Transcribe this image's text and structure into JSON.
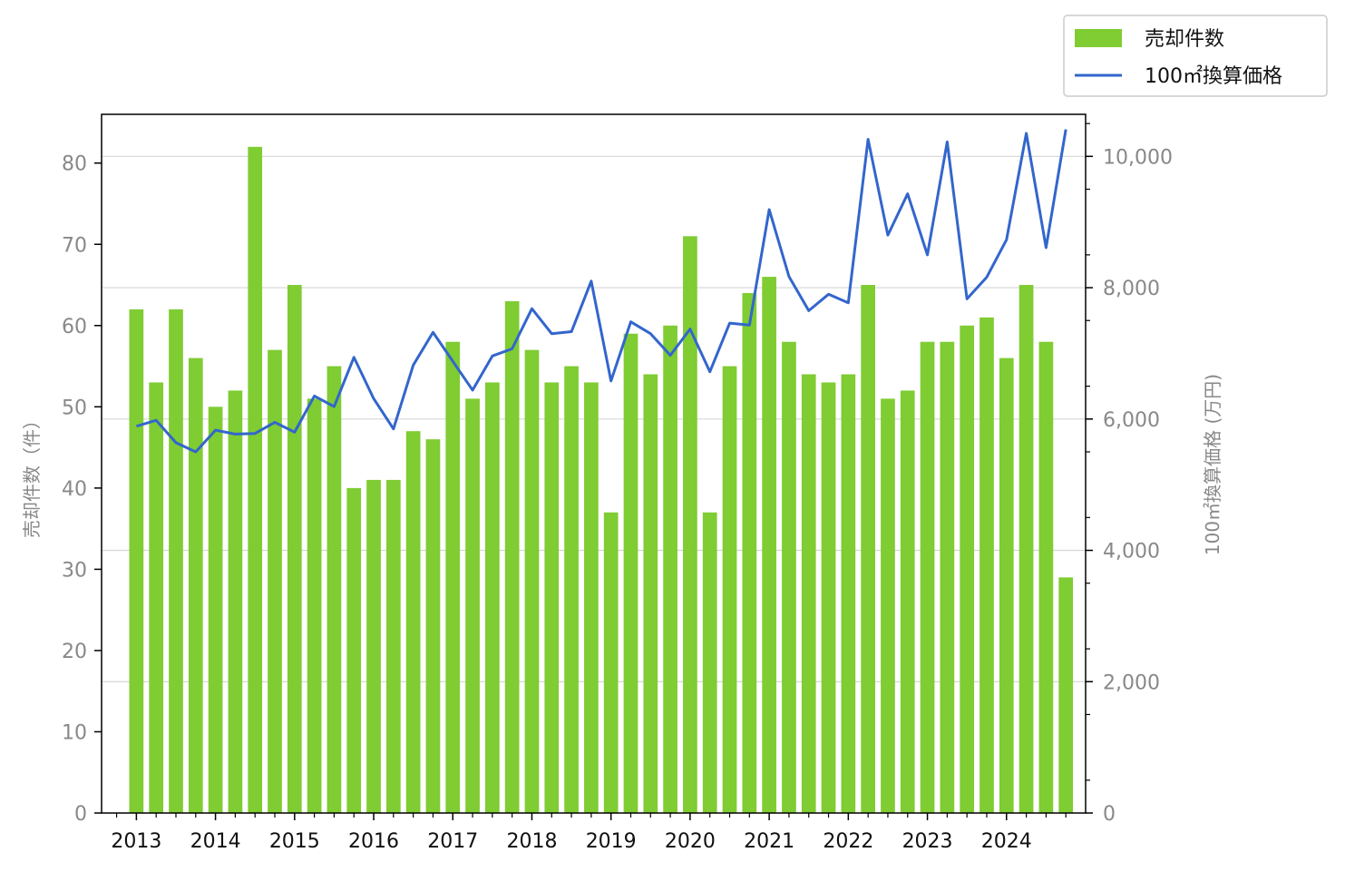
{
  "chart_data": {
    "type": "bar+line",
    "x_ticks": [
      "2013",
      "2014",
      "2015",
      "2016",
      "2017",
      "2018",
      "2019",
      "2020",
      "2021",
      "2022",
      "2023",
      "2024"
    ],
    "x": [
      2013.0,
      2013.25,
      2013.5,
      2013.75,
      2014.0,
      2014.25,
      2014.5,
      2014.75,
      2015.0,
      2015.25,
      2015.5,
      2015.75,
      2016.0,
      2016.25,
      2016.5,
      2016.75,
      2017.0,
      2017.25,
      2017.5,
      2017.75,
      2018.0,
      2018.25,
      2018.5,
      2018.75,
      2019.0,
      2019.25,
      2019.5,
      2019.75,
      2020.0,
      2020.25,
      2020.5,
      2020.75,
      2021.0,
      2021.25,
      2021.5,
      2021.75,
      2022.0,
      2022.25,
      2022.5,
      2022.75,
      2023.0,
      2023.25,
      2023.5,
      2023.75,
      2024.0,
      2024.25,
      2024.5,
      2024.75
    ],
    "series": [
      {
        "name": "売却件数",
        "kind": "bar",
        "axis": "left",
        "color": "#7fcc33",
        "values": [
          62,
          53,
          62,
          56,
          50,
          52,
          82,
          57,
          65,
          51,
          55,
          40,
          41,
          41,
          47,
          46,
          58,
          51,
          53,
          63,
          57,
          53,
          55,
          53,
          37,
          59,
          54,
          60,
          71,
          37,
          55,
          64,
          66,
          58,
          54,
          53,
          54,
          65,
          51,
          52,
          58,
          58,
          60,
          61,
          56,
          65,
          58,
          29
        ]
      },
      {
        "name": "100㎡換算価格",
        "kind": "line",
        "axis": "right",
        "color": "#3366cc",
        "values": [
          5890,
          5980,
          5640,
          5500,
          5830,
          5770,
          5780,
          5950,
          5800,
          6350,
          6190,
          6940,
          6310,
          5850,
          6820,
          7320,
          6880,
          6440,
          6960,
          7070,
          7680,
          7300,
          7330,
          8100,
          6580,
          7480,
          7300,
          6970,
          7370,
          6720,
          7460,
          7430,
          9190,
          8170,
          7650,
          7900,
          7770,
          10260,
          8800,
          9430,
          8500,
          10220,
          7830,
          8160,
          8730,
          10350,
          8610,
          10410
        ]
      }
    ],
    "y_left": {
      "label": "売却件数（件）",
      "lim": [
        0,
        86
      ],
      "ticks": [
        0,
        10,
        20,
        30,
        40,
        50,
        60,
        70,
        80
      ]
    },
    "y_right": {
      "label": "100㎡換算価格 (万円)",
      "lim": [
        0,
        10640
      ],
      "ticks": [
        0,
        2000,
        4000,
        6000,
        8000,
        10000
      ],
      "tick_labels": [
        "0",
        "2,000",
        "4,000",
        "6,000",
        "8,000",
        "10,000"
      ]
    },
    "x_range": [
      2012.56,
      2025.0
    ],
    "grid": "horizontal, right axis",
    "legend": "top-right outside"
  }
}
